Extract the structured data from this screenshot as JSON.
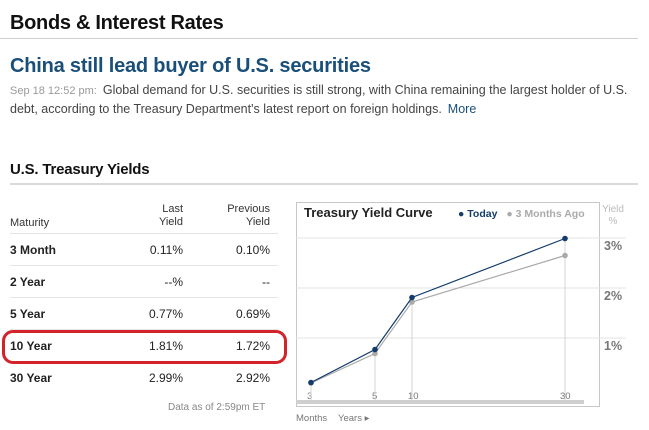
{
  "section": {
    "title": "Bonds & Interest Rates"
  },
  "story": {
    "headline": "China still lead buyer of U.S. securities",
    "timestamp": "Sep 18 12:52 pm:",
    "text": "Global demand for U.S. securities is still strong, with China remaining the largest holder of U.S. debt, according to the Treasury Department's latest report on foreign holdings.",
    "more": "More"
  },
  "treasury": {
    "title": "U.S. Treasury Yields",
    "columns": {
      "maturity": "Maturity",
      "last_1": "Last",
      "last_2": "Yield",
      "prev_1": "Previous",
      "prev_2": "Yield"
    },
    "rows": [
      {
        "maturity": "3 Month",
        "last": "0.11%",
        "previous": "0.10%"
      },
      {
        "maturity": "2 Year",
        "last": "--%",
        "previous": "--"
      },
      {
        "maturity": "5 Year",
        "last": "0.77%",
        "previous": "0.69%"
      },
      {
        "maturity": "10 Year",
        "last": "1.81%",
        "previous": "1.72%"
      },
      {
        "maturity": "30 Year",
        "last": "2.99%",
        "previous": "2.92%"
      }
    ],
    "as_of": "Data as of 2:59pm ET",
    "highlighted_row": "10 Year"
  },
  "chart_data": {
    "type": "line",
    "title": "Treasury Yield Curve",
    "legend": [
      "Today",
      "3 Months Ago"
    ],
    "ylabel_1": "Yield",
    "ylabel_2": "%",
    "xlabel_months": "Months",
    "xlabel_years": "Years",
    "x_ticks": [
      "3",
      "5",
      "10",
      "30"
    ],
    "y_ticks": [
      "3%",
      "2%",
      "1%"
    ],
    "series": [
      {
        "name": "Today",
        "color": "#123c6b",
        "points": [
          [
            0,
            0.11
          ],
          [
            5,
            0.77
          ],
          [
            10,
            1.81
          ],
          [
            30,
            2.99
          ]
        ]
      },
      {
        "name": "3 Months Ago",
        "color": "#aaaaaa",
        "points": [
          [
            0,
            0.1
          ],
          [
            5,
            0.69
          ],
          [
            10,
            1.72
          ],
          [
            30,
            2.65
          ]
        ]
      }
    ],
    "ylim": [
      0,
      3.3
    ],
    "grid": true
  }
}
